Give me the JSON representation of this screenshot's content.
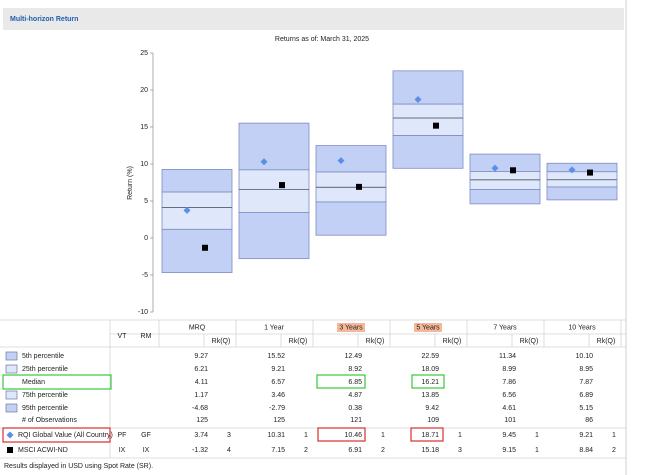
{
  "header": {
    "title": "Multi-horizon Return"
  },
  "chart_data": {
    "type": "percentile-box",
    "title": "Returns as of: March 31, 2025",
    "y_label": "Return (%)",
    "categories": [
      "MRQ",
      "1 Year",
      "3 Years",
      "5 Years",
      "7 Years",
      "10 Years"
    ],
    "ylim": [
      -10,
      25
    ],
    "yticks": [
      -10,
      -5,
      0,
      5,
      10,
      15,
      20,
      25
    ],
    "grid": false,
    "series": [
      {
        "name": "5th percentile",
        "color": "#c3d0f6",
        "values": [
          9.27,
          15.52,
          12.49,
          22.59,
          11.34,
          10.1
        ],
        "value_labels": [
          "9.27",
          "15.52",
          "12.49",
          "22.59",
          "11.34",
          "10.10"
        ]
      },
      {
        "name": "25th percentile",
        "color": "#dfe7fb",
        "values": [
          6.21,
          9.21,
          8.92,
          18.09,
          8.99,
          8.95
        ]
      },
      {
        "name": "Median",
        "color": "#5f6775",
        "values": [
          4.11,
          6.57,
          6.85,
          16.21,
          7.86,
          7.87
        ]
      },
      {
        "name": "75th percentile",
        "color": "#dfe7fb",
        "values": [
          1.17,
          3.46,
          4.87,
          13.85,
          6.56,
          6.89
        ]
      },
      {
        "name": "95th percentile",
        "color": "#c3d0f6",
        "values": [
          -4.68,
          -2.79,
          0.38,
          9.42,
          4.61,
          5.15
        ]
      },
      {
        "name": "RQI Global Value (All Country)",
        "color": "#5b8fe6",
        "marker": "diamond",
        "vt": "PF",
        "rm": "GF",
        "values": [
          3.74,
          10.31,
          10.46,
          18.71,
          9.45,
          9.21
        ],
        "ranks": [
          3,
          1,
          1,
          1,
          1,
          1
        ]
      },
      {
        "name": "MSCI ACWI-ND",
        "color": "#000000",
        "marker": "square",
        "vt": "IX",
        "rm": "IX",
        "values": [
          -1.32,
          7.15,
          6.91,
          15.18,
          9.15,
          8.84
        ],
        "ranks": [
          4,
          2,
          2,
          3,
          1,
          2
        ]
      }
    ]
  },
  "table": {
    "headers": {
      "vt": "VT",
      "rm": "RM",
      "rank": "Rk(Q)"
    },
    "observations": {
      "label": "# of Observations",
      "values": [
        125,
        125,
        121,
        109,
        101,
        86
      ]
    },
    "note": "Results displayed in USD using Spot Rate (SR)."
  }
}
